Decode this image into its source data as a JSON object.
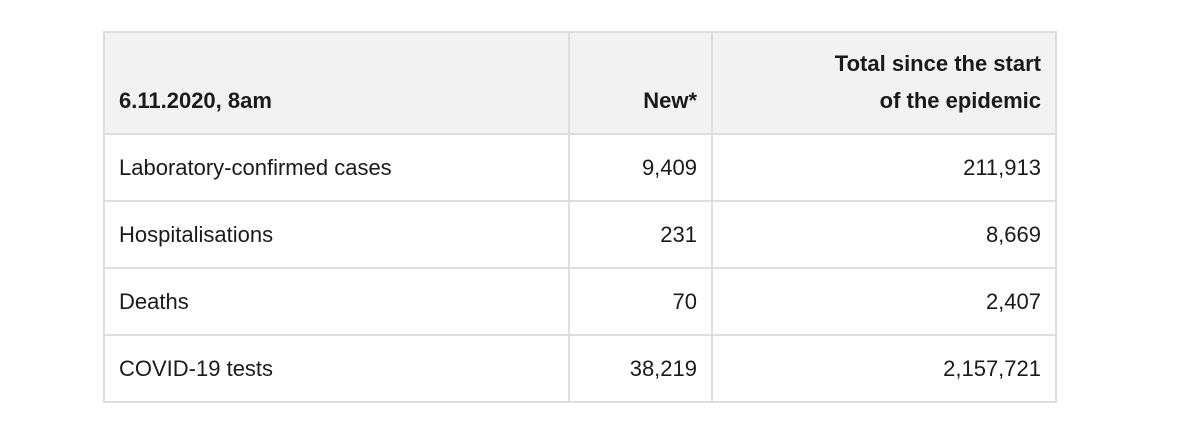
{
  "table": {
    "header": {
      "date": "6.11.2020, 8am",
      "new": "New*",
      "total_line1": "Total since the start",
      "total_line2": "of the epidemic"
    },
    "rows": [
      {
        "label": "Laboratory-confirmed cases",
        "new": "9,409",
        "total": "211,913"
      },
      {
        "label": "Hospitalisations",
        "new": "231",
        "total": "8,669"
      },
      {
        "label": "Deaths",
        "new": "70",
        "total": "2,407"
      },
      {
        "label": "COVID-19 tests",
        "new": "38,219",
        "total": "2,157,721"
      }
    ]
  }
}
